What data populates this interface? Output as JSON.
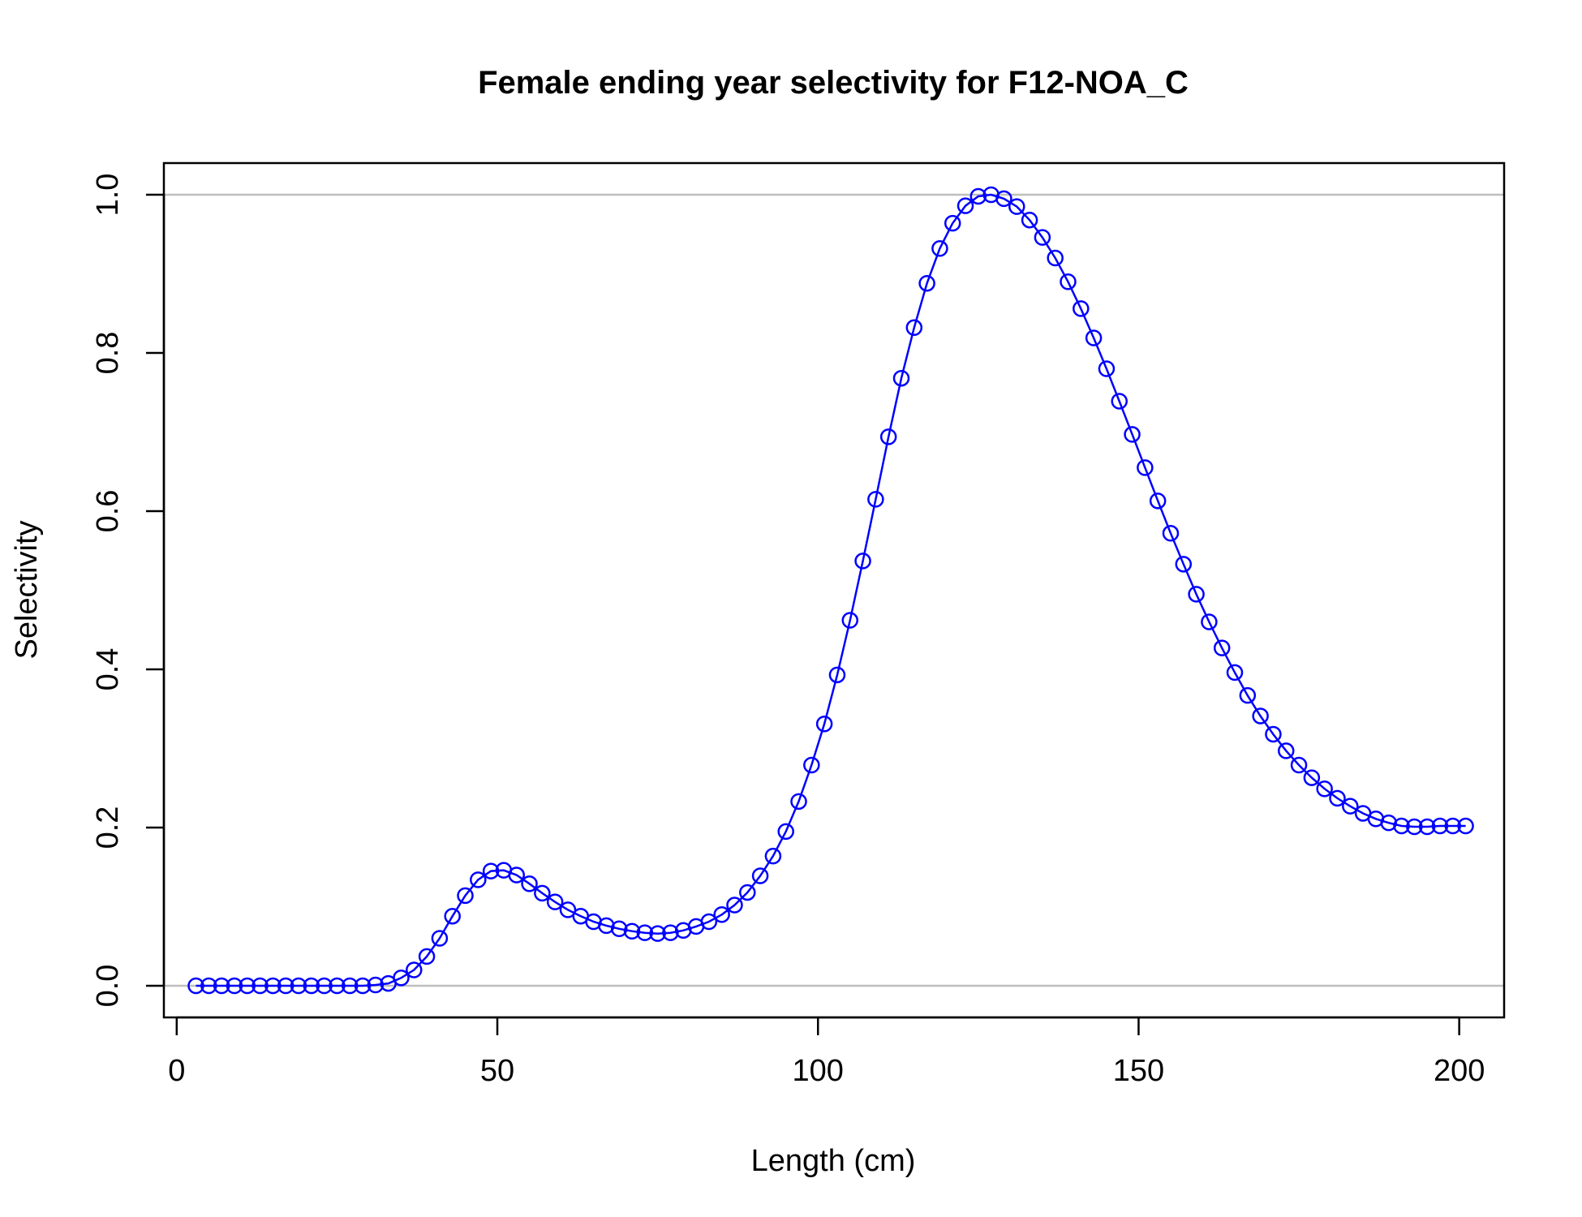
{
  "chart_data": {
    "type": "line",
    "title": "Female ending year selectivity for F12-NOA_C",
    "xlabel": "Length (cm)",
    "ylabel": "Selectivity",
    "xlim": [
      -2,
      207
    ],
    "ylim": [
      -0.04,
      1.04
    ],
    "xticks": [
      0,
      50,
      100,
      150,
      200
    ],
    "yticks": [
      0.0,
      0.2,
      0.4,
      0.6,
      0.8,
      1.0
    ],
    "xtick_labels": [
      "0",
      "50",
      "100",
      "150",
      "200"
    ],
    "ytick_labels": [
      "0.0",
      "0.2",
      "0.4",
      "0.6",
      "0.8",
      "1.0"
    ],
    "reference_lines_y": [
      0,
      1
    ],
    "reference_line_color": "#bebebe",
    "series_color": "#0000ff",
    "markers": "open-circle",
    "grid": false,
    "series": [
      {
        "x": [
          3,
          5,
          7,
          9,
          11,
          13,
          15,
          17,
          19,
          21,
          23,
          25,
          27,
          29,
          31,
          33,
          35,
          37,
          39,
          41,
          43,
          45,
          47,
          49,
          51,
          53,
          55,
          57,
          59,
          61,
          63,
          65,
          67,
          69,
          71,
          73,
          75,
          77,
          79,
          81,
          83,
          85,
          87,
          89,
          91,
          93,
          95,
          97,
          99,
          101,
          103,
          105,
          107,
          109,
          111,
          113,
          115,
          117,
          119,
          121,
          123,
          125,
          127,
          129,
          131,
          133,
          135,
          137,
          139,
          141,
          143,
          145,
          147,
          149,
          151,
          153,
          155,
          157,
          159,
          161,
          163,
          165,
          167,
          169,
          171,
          173,
          175,
          177,
          179,
          181,
          183,
          185,
          187,
          189,
          191,
          193,
          195,
          197,
          199,
          201
        ],
        "values": [
          0,
          0,
          0,
          0,
          0,
          0,
          0,
          0,
          0,
          0,
          0,
          0,
          0,
          0,
          0.001,
          0.003,
          0.01,
          0.02,
          0.037,
          0.06,
          0.088,
          0.114,
          0.134,
          0.145,
          0.146,
          0.14,
          0.129,
          0.117,
          0.106,
          0.096,
          0.088,
          0.081,
          0.076,
          0.072,
          0.069,
          0.067,
          0.066,
          0.067,
          0.07,
          0.075,
          0.081,
          0.09,
          0.102,
          0.118,
          0.139,
          0.164,
          0.195,
          0.233,
          0.279,
          0.331,
          0.393,
          0.462,
          0.537,
          0.615,
          0.694,
          0.768,
          0.832,
          0.888,
          0.932,
          0.964,
          0.986,
          0.998,
          1.0,
          0.995,
          0.985,
          0.968,
          0.946,
          0.92,
          0.89,
          0.856,
          0.819,
          0.78,
          0.739,
          0.697,
          0.655,
          0.613,
          0.572,
          0.533,
          0.495,
          0.46,
          0.427,
          0.396,
          0.367,
          0.341,
          0.318,
          0.297,
          0.279,
          0.263,
          0.249,
          0.237,
          0.227,
          0.218,
          0.211,
          0.206,
          0.202,
          0.201,
          0.201,
          0.202,
          0.202,
          0.202
        ]
      }
    ]
  }
}
